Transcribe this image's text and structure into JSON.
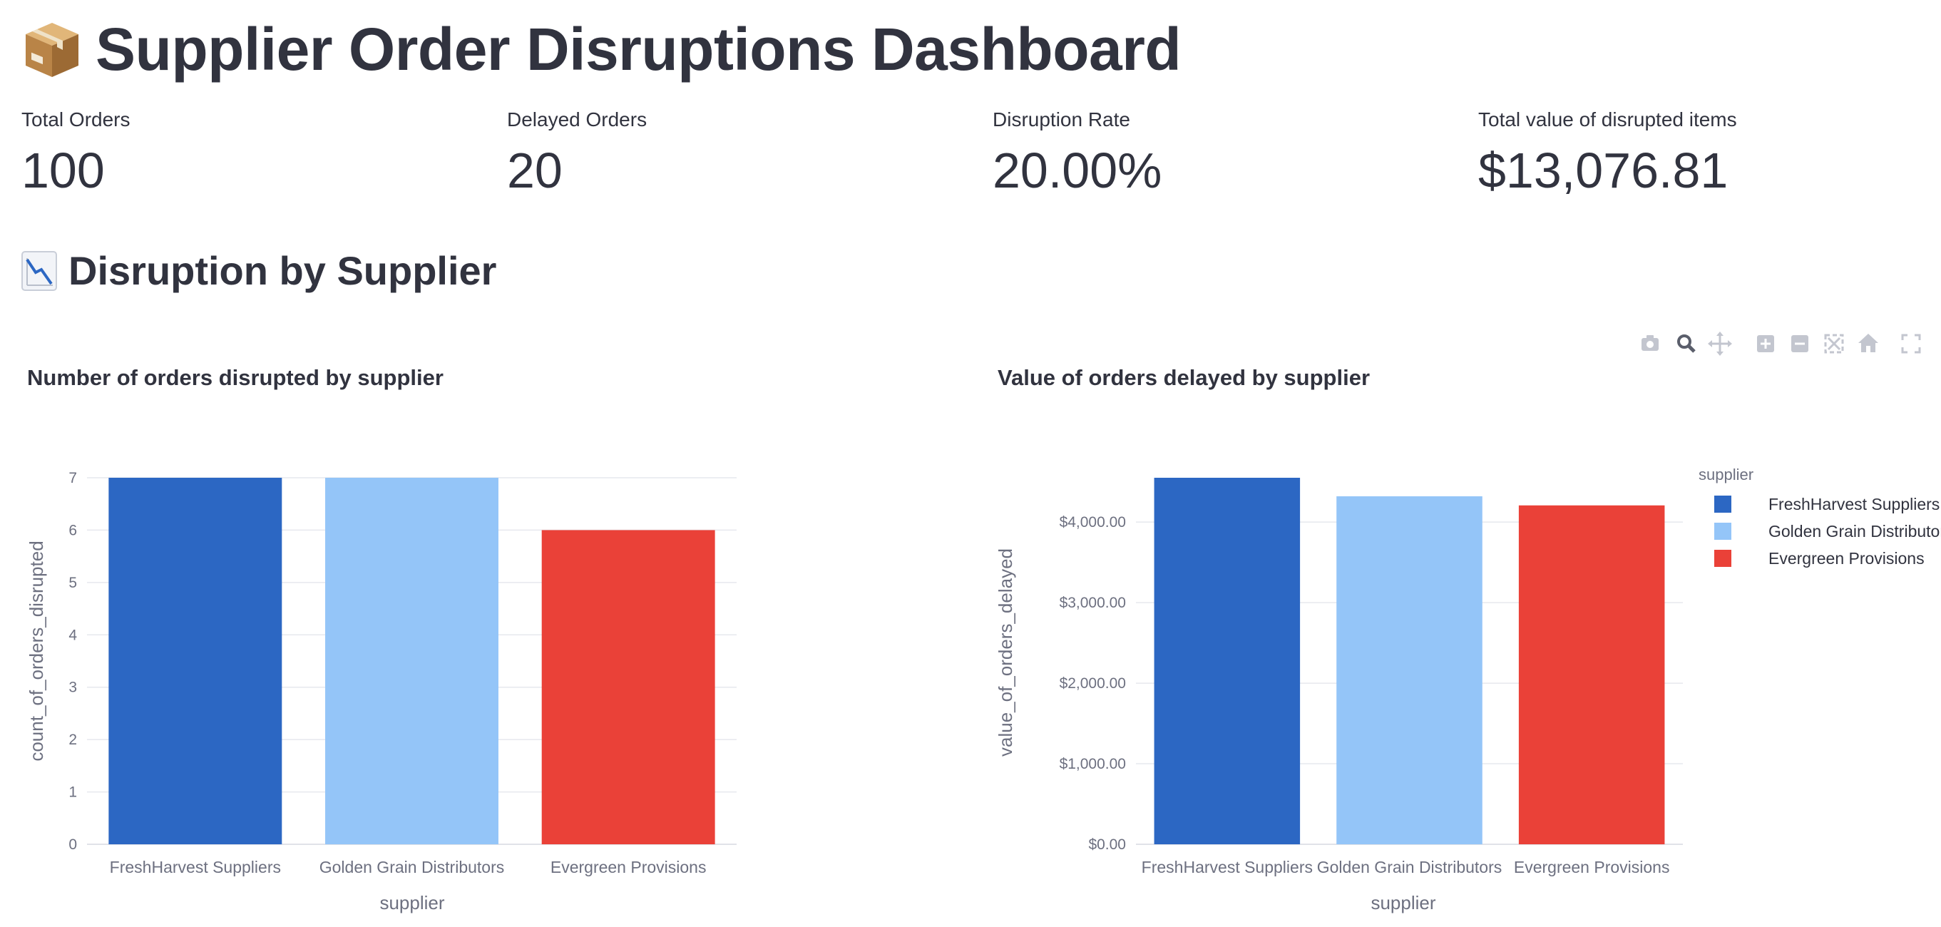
{
  "header": {
    "title": "Supplier Order Disruptions Dashboard",
    "title_icon": "package-icon"
  },
  "metrics": [
    {
      "label": "Total Orders",
      "value": "100"
    },
    {
      "label": "Delayed Orders",
      "value": "20"
    },
    {
      "label": "Disruption Rate",
      "value": "20.00%"
    },
    {
      "label": "Total value of disrupted items",
      "value": "$13,076.81"
    }
  ],
  "section": {
    "title": "Disruption by Supplier",
    "icon": "chart-decreasing-icon"
  },
  "modebar": {
    "icons": [
      "camera-icon",
      "zoom-icon",
      "pan-icon",
      "zoom-in-icon",
      "zoom-out-icon",
      "autoscale-icon",
      "reset-axes-icon",
      "fullscreen-icon"
    ]
  },
  "colors": {
    "FreshHarvest Suppliers": "#2c67c3",
    "Golden Grain Distributors": "#94c5f8",
    "Evergreen Provisions": "#ea4138",
    "text": "#31333f",
    "axis_text": "#6d7080",
    "grid": "#e6e8ee"
  },
  "chart_data": [
    {
      "type": "bar",
      "title": "Number of orders disrupted by supplier",
      "categories": [
        "FreshHarvest Suppliers",
        "Golden Grain Distributors",
        "Evergreen Provisions"
      ],
      "values": [
        7,
        7,
        6
      ],
      "xlabel": "supplier",
      "ylabel": "count_of_orders_disrupted",
      "ylim": [
        0,
        7
      ],
      "yticks": [
        0,
        1,
        2,
        3,
        4,
        5,
        6,
        7
      ],
      "ytick_labels": [
        "0",
        "1",
        "2",
        "3",
        "4",
        "5",
        "6",
        "7"
      ],
      "grid": true,
      "legend": null
    },
    {
      "type": "bar",
      "title": "Value of orders delayed by supplier",
      "categories": [
        "FreshHarvest Suppliers",
        "Golden Grain Distributors",
        "Evergreen Provisions"
      ],
      "values": [
        4550,
        4320,
        4207
      ],
      "xlabel": "supplier",
      "ylabel": "value_of_orders_delayed",
      "ylim": [
        0,
        4550
      ],
      "yticks": [
        0,
        1000,
        2000,
        3000,
        4000
      ],
      "ytick_labels": [
        "$0.00",
        "$1,000.00",
        "$2,000.00",
        "$3,000.00",
        "$4,000.00"
      ],
      "grid": true,
      "legend": {
        "title": "supplier",
        "placement": "right",
        "items": [
          "FreshHarvest Suppliers",
          "Golden Grain Distributors",
          "Evergreen Provisions"
        ]
      }
    }
  ]
}
